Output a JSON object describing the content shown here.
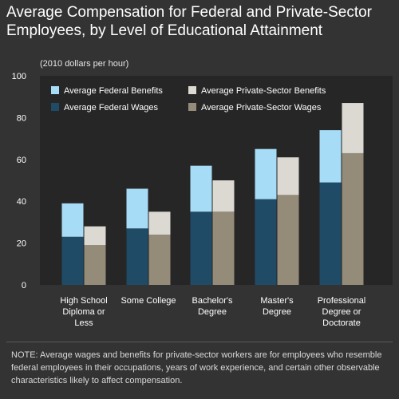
{
  "title_lines": [
    "Average Compensation for Federal and Private-Sector",
    "Employees, by Level of Educational Attainment"
  ],
  "note": "NOTE:  Average wages and benefits for private-sector workers are for employees who resemble federal employees in their occupations, years of work experience, and certain other observable characteristics likely to affect compensation.",
  "colors": {
    "federal_wages": "#1f4b66",
    "federal_benefits": "#a7dcf6",
    "private_wages": "#948b78",
    "private_benefits": "#dcd8d2",
    "background": "#333333",
    "plot_background": "#262626"
  },
  "chart_data": {
    "type": "bar",
    "stacked": true,
    "grouped": true,
    "unit_label": "(2010 dollars per hour)",
    "categories": [
      [
        "High School",
        "Diploma or",
        "Less"
      ],
      [
        "Some College"
      ],
      [
        "Bachelor's",
        "Degree"
      ],
      [
        "Master's",
        "Degree"
      ],
      [
        "Professional",
        "Degree or",
        "Doctorate"
      ]
    ],
    "yticks": [
      0,
      20,
      40,
      60,
      80,
      100
    ],
    "ylim": [
      0,
      100
    ],
    "grid": false,
    "legend_position": "top-left",
    "legend": [
      {
        "label": "Average Federal Benefits",
        "color_key": "federal_benefits"
      },
      {
        "label": "Average Private-Sector Benefits",
        "color_key": "private_benefits"
      },
      {
        "label": "Average Federal Wages",
        "color_key": "federal_wages"
      },
      {
        "label": "Average Private-Sector Wages",
        "color_key": "private_wages"
      }
    ],
    "series": [
      {
        "name": "Average Federal Wages",
        "group": "federal",
        "color_key": "federal_wages",
        "values": [
          23,
          27,
          35,
          41,
          49
        ]
      },
      {
        "name": "Average Federal Benefits",
        "group": "federal",
        "color_key": "federal_benefits",
        "values": [
          16,
          19,
          22,
          24,
          25
        ]
      },
      {
        "name": "Average Private-Sector Wages",
        "group": "private",
        "color_key": "private_wages",
        "values": [
          19,
          24,
          35,
          43,
          63
        ]
      },
      {
        "name": "Average Private-Sector Benefits",
        "group": "private",
        "color_key": "private_benefits",
        "values": [
          9,
          11,
          15,
          18,
          24
        ]
      }
    ]
  }
}
